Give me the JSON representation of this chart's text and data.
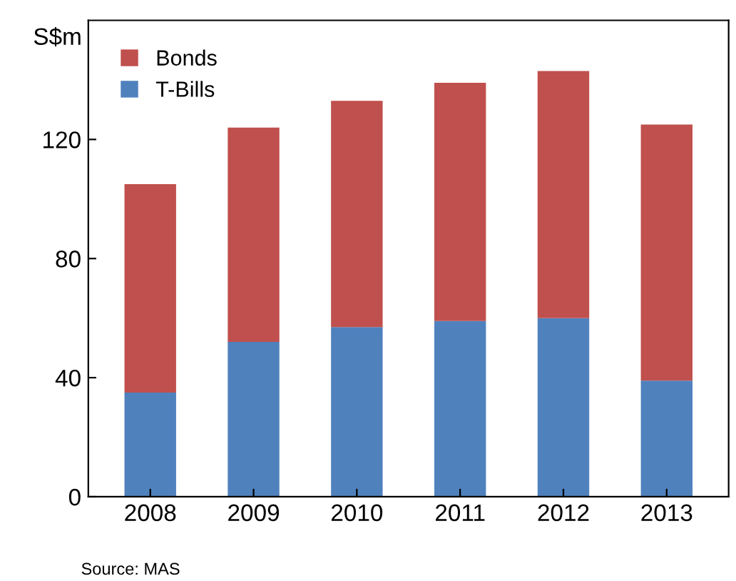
{
  "chart_data": {
    "type": "bar",
    "stacked": true,
    "ylabel": "S$m",
    "categories": [
      "2008",
      "2009",
      "2010",
      "2011",
      "2012",
      "2013"
    ],
    "series": [
      {
        "name": "T-Bills",
        "color": "#4f81bd",
        "values": [
          35,
          52,
          57,
          59,
          60,
          39
        ]
      },
      {
        "name": "Bonds",
        "color": "#c0504d",
        "values": [
          70,
          72,
          76,
          80,
          83,
          86
        ]
      }
    ],
    "ylim": [
      0,
      160
    ],
    "yticks": [
      0,
      40,
      80,
      120
    ],
    "grid": false,
    "legend": "top left",
    "annotations": [
      "Source: MAS"
    ]
  }
}
